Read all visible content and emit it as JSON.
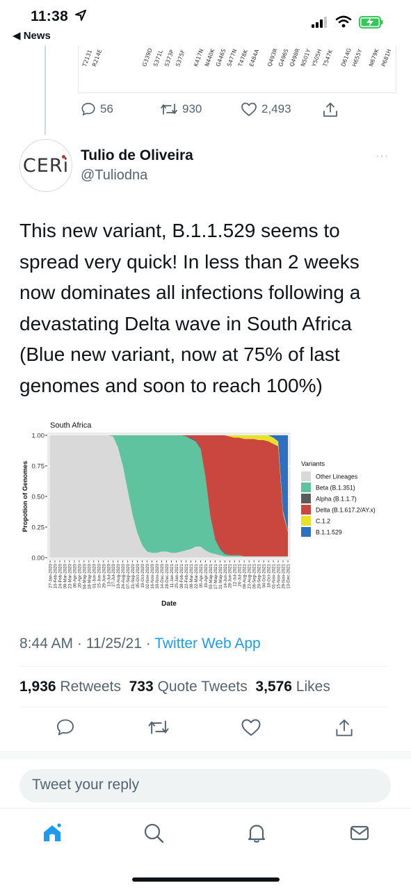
{
  "status_bar": {
    "time": "11:38",
    "back_app": "◀ News",
    "battery_color": "#34c759"
  },
  "prev_tweet": {
    "ticks": [
      "T2131",
      "R214E",
      "G339D",
      "S371L",
      "S373P",
      "S375F",
      "K417N",
      "N440K",
      "G446S",
      "S477N",
      "T478K",
      "E484A",
      "Q493R",
      "G496S",
      "Q498R",
      "N501Y",
      "Y505H",
      "T547K",
      "D614G",
      "H655Y",
      "N679K",
      "P681H"
    ],
    "replies": "56",
    "retweets": "930",
    "likes": "2,493"
  },
  "author": {
    "name": "Tulio de Oliveira",
    "handle": "@Tuliodna",
    "avatar_text": "CERi",
    "more_icon": "···"
  },
  "tweet": {
    "lines": [
      "This new variant, B.1.1.529 seems to",
      "spread very quick! In less than 2 weeks",
      "now dominates all infections following a",
      "devastating Delta wave in South Africa",
      "(Blue new variant, now at 75% of last",
      "genomes and soon to reach 100%)"
    ]
  },
  "chart_data": {
    "type": "area",
    "title": "South Africa",
    "xlabel": "Date",
    "ylabel": "Propotion of Genomes",
    "ylim": [
      0,
      1
    ],
    "yticks": [
      "0.00",
      "0.25",
      "0.50",
      "0.75",
      "1.00"
    ],
    "legend_title": "Variants",
    "legend_position": "right",
    "x": [
      "27-Jan-2020",
      "10-Feb-2020",
      "24-Feb-2020",
      "09-Mar-2020",
      "23-Mar-2020",
      "06-Apr-2020",
      "20-Apr-2020",
      "04-May-2020",
      "18-May-2020",
      "01-Jun-2020",
      "15-Jun-2020",
      "29-Jun-2020",
      "13-Jul-2020",
      "27-Jul-2020",
      "10-Aug-2020",
      "24-Aug-2020",
      "07-Sep-2020",
      "21-Sep-2020",
      "05-Oct-2020",
      "19-Oct-2020",
      "02-Nov-2020",
      "16-Nov-2020",
      "30-Nov-2020",
      "14-Dec-2020",
      "28-Dec-2020",
      "11-Jan-2021",
      "25-Jan-2021",
      "08-Feb-2021",
      "22-Feb-2021",
      "08-Mar-2021",
      "22-Mar-2021",
      "05-Apr-2021",
      "19-Apr-2021",
      "03-May-2021",
      "17-May-2021",
      "31-May-2021",
      "14-Jun-2021",
      "28-Jun-2021",
      "12-Jul-2021",
      "26-Jul-2021",
      "09-Aug-2021",
      "23-Aug-2021",
      "06-Sep-2021",
      "20-Sep-2021",
      "04-Oct-2021",
      "18-Oct-2021",
      "01-Nov-2021",
      "15-Nov-2021",
      "29-Nov-2021",
      "13-Dec-2021"
    ],
    "series": [
      {
        "name": "Other Lineages",
        "color": "#d9d9d9",
        "values": [
          1,
          1,
          1,
          1,
          1,
          1,
          1,
          1,
          1,
          1,
          1,
          1,
          1,
          0.99,
          0.9,
          0.75,
          0.55,
          0.35,
          0.2,
          0.1,
          0.05,
          0.04,
          0.04,
          0.05,
          0.05,
          0.04,
          0.04,
          0.05,
          0.06,
          0.07,
          0.09,
          0.09,
          0.06,
          0.04,
          0.03,
          0.02,
          0.01,
          0.01,
          0.01,
          0.01,
          0.01,
          0.01,
          0.01,
          0.01,
          0.01,
          0.01,
          0.01,
          0.01,
          0.01,
          0.01
        ]
      },
      {
        "name": "Beta (B.1.351)",
        "color": "#5fc3a0",
        "values": [
          0,
          0,
          0,
          0,
          0,
          0,
          0,
          0,
          0,
          0,
          0,
          0,
          0,
          0.01,
          0.1,
          0.25,
          0.45,
          0.65,
          0.8,
          0.9,
          0.95,
          0.96,
          0.96,
          0.95,
          0.95,
          0.96,
          0.96,
          0.95,
          0.93,
          0.9,
          0.86,
          0.8,
          0.6,
          0.3,
          0.12,
          0.05,
          0.02,
          0.01,
          0.01,
          0.01,
          0,
          0,
          0,
          0,
          0,
          0,
          0,
          0,
          0,
          0
        ]
      },
      {
        "name": "Alpha (B.1.1.7)",
        "color": "#5a5a5a",
        "values": [
          0,
          0,
          0,
          0,
          0,
          0,
          0,
          0,
          0,
          0,
          0,
          0,
          0,
          0,
          0,
          0,
          0,
          0,
          0,
          0,
          0,
          0,
          0,
          0,
          0,
          0,
          0,
          0,
          0,
          0.01,
          0.01,
          0.01,
          0.01,
          0.01,
          0.01,
          0.01,
          0.01,
          0,
          0,
          0,
          0,
          0,
          0,
          0,
          0,
          0,
          0,
          0,
          0,
          0
        ]
      },
      {
        "name": "Delta (B.1.617.2/AY.x)",
        "color": "#c9473f",
        "values": [
          0,
          0,
          0,
          0,
          0,
          0,
          0,
          0,
          0,
          0,
          0,
          0,
          0,
          0,
          0,
          0,
          0,
          0,
          0,
          0,
          0,
          0,
          0,
          0,
          0,
          0,
          0,
          0,
          0.01,
          0.02,
          0.04,
          0.1,
          0.33,
          0.65,
          0.84,
          0.92,
          0.96,
          0.97,
          0.96,
          0.96,
          0.96,
          0.96,
          0.96,
          0.95,
          0.95,
          0.94,
          0.92,
          0.9,
          0.35,
          0.2
        ]
      },
      {
        "name": "C.1.2",
        "color": "#e8e12a",
        "values": [
          0,
          0,
          0,
          0,
          0,
          0,
          0,
          0,
          0,
          0,
          0,
          0,
          0,
          0,
          0,
          0,
          0,
          0,
          0,
          0,
          0,
          0,
          0,
          0,
          0,
          0,
          0,
          0,
          0,
          0,
          0,
          0,
          0,
          0,
          0,
          0,
          0,
          0.01,
          0.02,
          0.02,
          0.03,
          0.03,
          0.03,
          0.04,
          0.04,
          0.05,
          0.05,
          0.04,
          0.02,
          0.01
        ]
      },
      {
        "name": "B.1.1.529",
        "color": "#2f6fc2",
        "values": [
          0,
          0,
          0,
          0,
          0,
          0,
          0,
          0,
          0,
          0,
          0,
          0,
          0,
          0,
          0,
          0,
          0,
          0,
          0,
          0,
          0,
          0,
          0,
          0,
          0,
          0,
          0,
          0,
          0,
          0,
          0,
          0,
          0,
          0,
          0,
          0,
          0,
          0,
          0,
          0,
          0,
          0,
          0,
          0,
          0,
          0,
          0.02,
          0.05,
          0.62,
          0.78
        ]
      }
    ]
  },
  "meta": {
    "timestamp": "8:44 AM · 11/25/21 · ",
    "app": "Twitter Web App"
  },
  "stats": {
    "retweets_count": "1,936",
    "retweets_label": "Retweets",
    "quotes_count": "733",
    "quotes_label": "Quote Tweets",
    "likes_count": "3,576",
    "likes_label": "Likes"
  },
  "reply": {
    "placeholder": "Tweet your reply"
  },
  "accent": "#1d9bf0"
}
